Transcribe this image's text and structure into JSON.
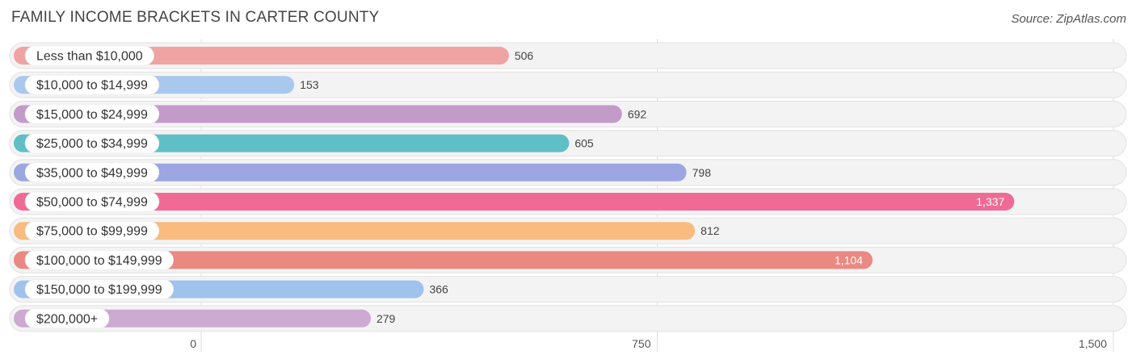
{
  "header": {
    "title": "FAMILY INCOME BRACKETS IN CARTER COUNTY",
    "source": "Source: ZipAtlas.com"
  },
  "chart_data": {
    "type": "bar",
    "orientation": "horizontal",
    "title": "FAMILY INCOME BRACKETS IN CARTER COUNTY",
    "categories": [
      "Less than $10,000",
      "$10,000 to $14,999",
      "$15,000 to $24,999",
      "$25,000 to $34,999",
      "$35,000 to $49,999",
      "$50,000 to $74,999",
      "$75,000 to $99,999",
      "$100,000 to $149,999",
      "$150,000 to $199,999",
      "$200,000+"
    ],
    "values": [
      506,
      153,
      692,
      605,
      798,
      1337,
      812,
      1104,
      366,
      279
    ],
    "value_labels": [
      "506",
      "153",
      "692",
      "605",
      "798",
      "1,337",
      "812",
      "1,104",
      "366",
      "279"
    ],
    "colors": [
      "#f0a3a3",
      "#a9c8ee",
      "#c39bc9",
      "#5fbec6",
      "#9ba6e2",
      "#f06a96",
      "#f9bb7f",
      "#ea8882",
      "#9fc3ec",
      "#ccaad1"
    ],
    "xlim": [
      0,
      1500
    ],
    "ticks": [
      0,
      750,
      1500
    ],
    "tick_labels": [
      "0",
      "750",
      "1,500"
    ],
    "xlabel": "",
    "ylabel": "",
    "grid": true,
    "legend": "none"
  }
}
